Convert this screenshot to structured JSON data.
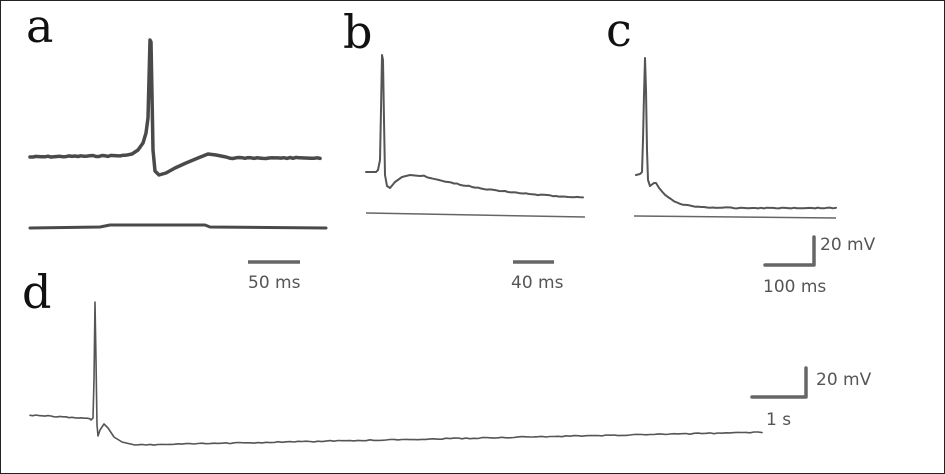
{
  "panels": {
    "a": {
      "letter": "a",
      "time_scale": "50 ms"
    },
    "b": {
      "letter": "b",
      "time_scale": "40 ms"
    },
    "c": {
      "letter": "c",
      "time_scale": "100 ms",
      "voltage_scale": "20 mV"
    },
    "d": {
      "letter": "d",
      "time_scale": "1 s",
      "voltage_scale": "20 mV"
    }
  },
  "colors": {
    "trace": "#555555",
    "trace_dark": "#4a4a4a",
    "baseline": "#666666",
    "scalebar": "#666666",
    "frame": "#222222"
  }
}
